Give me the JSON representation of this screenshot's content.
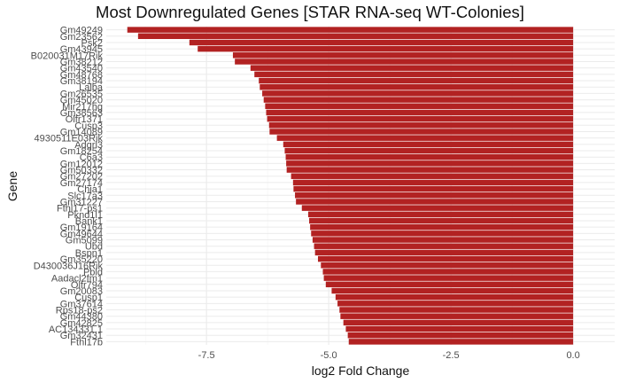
{
  "chart_data": {
    "type": "bar",
    "orientation": "horizontal",
    "title": "Most Downregulated Genes [STAR RNA-seq WT-Colonies]",
    "xlabel": "log2 Fold Change",
    "ylabel": "Gene",
    "xlim": [
      -9.55,
      0.85
    ],
    "xticks": [
      -7.5,
      -5.0,
      -2.5,
      0.0
    ],
    "xtick_labels": [
      "-7.5",
      "-5.0",
      "-2.5",
      "0.0"
    ],
    "grid": true,
    "bar_color": "#B22222",
    "categories": [
      "Gm49249",
      "Gm23562",
      "Psk2",
      "Gm43945",
      "B020031M17Rik",
      "Gm38212",
      "Gm43540",
      "Gm48768",
      "Gm38194",
      "Lalba",
      "Gm26535",
      "Gm45020",
      "Mir217hg",
      "Gm38563",
      "Olfr1371",
      "Cusp3",
      "Gm14089",
      "4930511E03Rik",
      "Adgrl3",
      "Gm18254",
      "C6a3",
      "Gm12012",
      "Gm50332",
      "Gm27202",
      "Gm27174",
      "Chia1",
      "Slc17a3",
      "Gm31227",
      "Fthl17-ps1",
      "Pknd1l1",
      "Bank1",
      "Gm19164",
      "Gm49644",
      "Gm5099",
      "Ubd",
      "Bspn1",
      "Gm35220",
      "D430036J16Rik",
      "Pbld",
      "Aadacl2fm1",
      "Olfr794",
      "Gm20083",
      "Cusp1",
      "Gm37614",
      "Rps18-ps2",
      "Gm44380",
      "Gm42825",
      "AC134331.1",
      "Gm32431",
      "Fthl17b"
    ],
    "values": [
      -9.12,
      -8.9,
      -7.85,
      -7.68,
      -6.96,
      -6.92,
      -6.6,
      -6.52,
      -6.43,
      -6.41,
      -6.36,
      -6.33,
      -6.3,
      -6.28,
      -6.26,
      -6.22,
      -6.21,
      -6.06,
      -5.93,
      -5.9,
      -5.88,
      -5.87,
      -5.86,
      -5.77,
      -5.73,
      -5.72,
      -5.69,
      -5.67,
      -5.55,
      -5.42,
      -5.4,
      -5.38,
      -5.36,
      -5.33,
      -5.3,
      -5.28,
      -5.22,
      -5.16,
      -5.12,
      -5.1,
      -5.06,
      -4.94,
      -4.86,
      -4.82,
      -4.78,
      -4.76,
      -4.7,
      -4.65,
      -4.61,
      -4.59
    ]
  }
}
